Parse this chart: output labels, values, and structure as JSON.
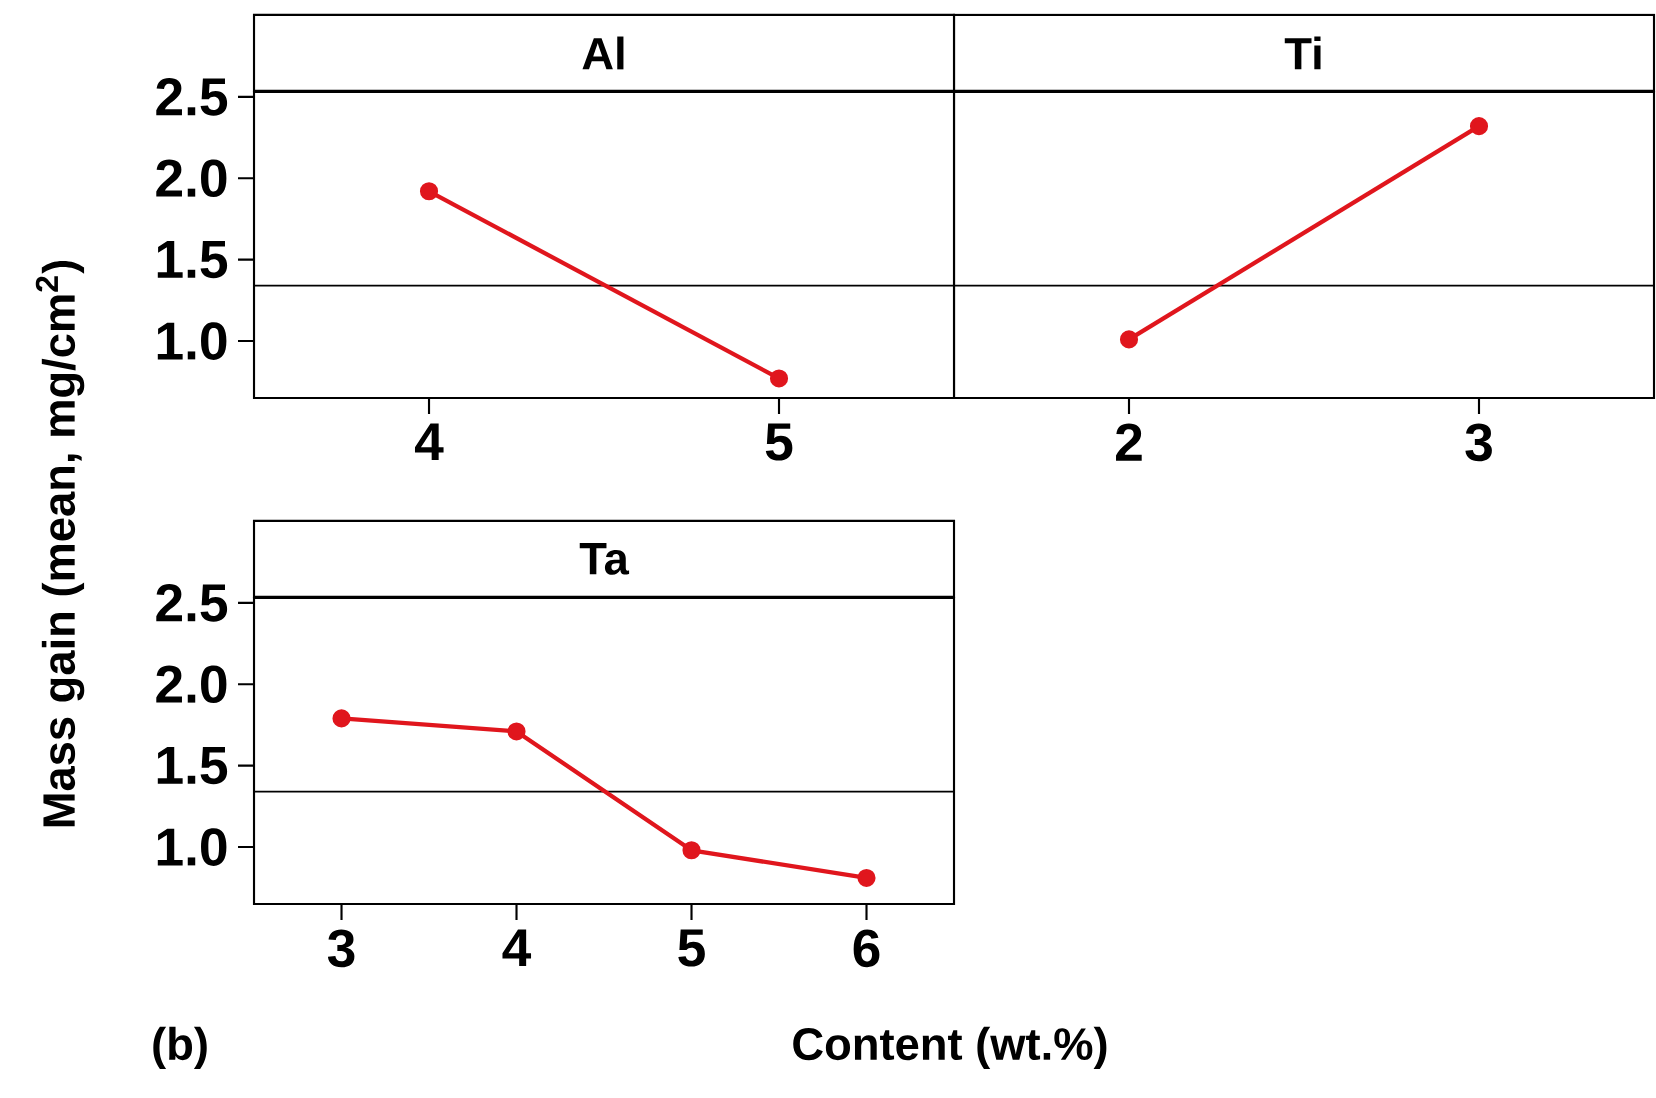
{
  "chart_data": [
    {
      "type": "line",
      "title": "Al",
      "categories": [
        "4",
        "5"
      ],
      "color": "#e0161d",
      "marker": "circle",
      "values": [
        1.92,
        0.77
      ],
      "ylim": [
        0.65,
        2.53
      ],
      "yticks": [
        {
          "value": 1,
          "label": "1.0"
        },
        {
          "value": 1.5,
          "label": "1.5"
        },
        {
          "value": 2,
          "label": "2.0"
        },
        {
          "value": 2.5,
          "label": "2.5"
        }
      ],
      "ref_lines": [
        {
          "axis": "y",
          "value": 1.34
        }
      ],
      "grid": false
    },
    {
      "type": "line",
      "title": "Ti",
      "categories": [
        "2",
        "3"
      ],
      "color": "#e0161d",
      "marker": "circle",
      "values": [
        1.01,
        2.32
      ],
      "ylim": [
        0.65,
        2.53
      ],
      "tick_labels": "x",
      "ref_lines": [
        {
          "axis": "y",
          "value": 1.34
        }
      ],
      "grid": false
    },
    {
      "type": "line",
      "title": "Ta",
      "categories": [
        "3",
        "4",
        "5",
        "6"
      ],
      "color": "#e0161d",
      "marker": "circle",
      "values": [
        1.79,
        1.71,
        0.98,
        0.81
      ],
      "ylim": [
        0.65,
        2.53
      ],
      "yticks": [
        {
          "value": 1,
          "label": "1.0"
        },
        {
          "value": 1.5,
          "label": "1.5"
        },
        {
          "value": 2,
          "label": "2.0"
        },
        {
          "value": 2.5,
          "label": "2.5"
        }
      ],
      "ref_lines": [
        {
          "axis": "y",
          "value": 1.34
        }
      ],
      "grid": false,
      "ylabel": "Mass gain (mean, mg/cm$^{2}$)",
      "xlabel": "Content (wt.%)",
      "annotations": [
        "(b)"
      ]
    }
  ]
}
